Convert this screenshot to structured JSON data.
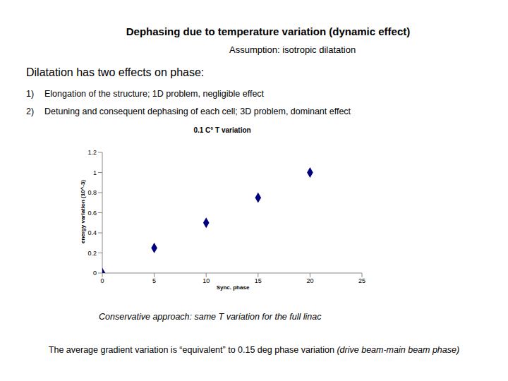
{
  "slide": {
    "title": "Dephasing due to temperature variation (dynamic effect)",
    "subtitle": "Assumption: isotropic dilatation",
    "heading": "Dilatation has two effects on phase:",
    "items": [
      {
        "number": "1)",
        "text": "Elongation of the structure; 1D problem, negligible effect"
      },
      {
        "number": "2)",
        "text": "Detuning and consequent dephasing of each cell; 3D problem, dominant effect"
      }
    ],
    "caption": "Conservative approach: same T variation for the full linac",
    "conclusion": {
      "text": "The average gradient variation is “equivalent” to 0.15 deg phase variation",
      "note": "(drive beam-main beam phase)"
    }
  },
  "chart_data": {
    "type": "scatter",
    "title": "0.1 C° T variation",
    "x_label": "Sync. phase",
    "y_label": "energy variation (10^-3)",
    "x": [
      0,
      5,
      10,
      15,
      20
    ],
    "values": [
      0,
      0.25,
      0.5,
      0.75,
      1
    ],
    "color": "#000080",
    "marker": "diamond",
    "xlim": [
      0,
      25
    ],
    "xticks": [
      0,
      5,
      10,
      15,
      20,
      25
    ],
    "ylim": [
      0,
      1.2
    ],
    "yticks": [
      0,
      0.2,
      0.4,
      0.6,
      0.8,
      1,
      1.2
    ],
    "grid": false
  }
}
